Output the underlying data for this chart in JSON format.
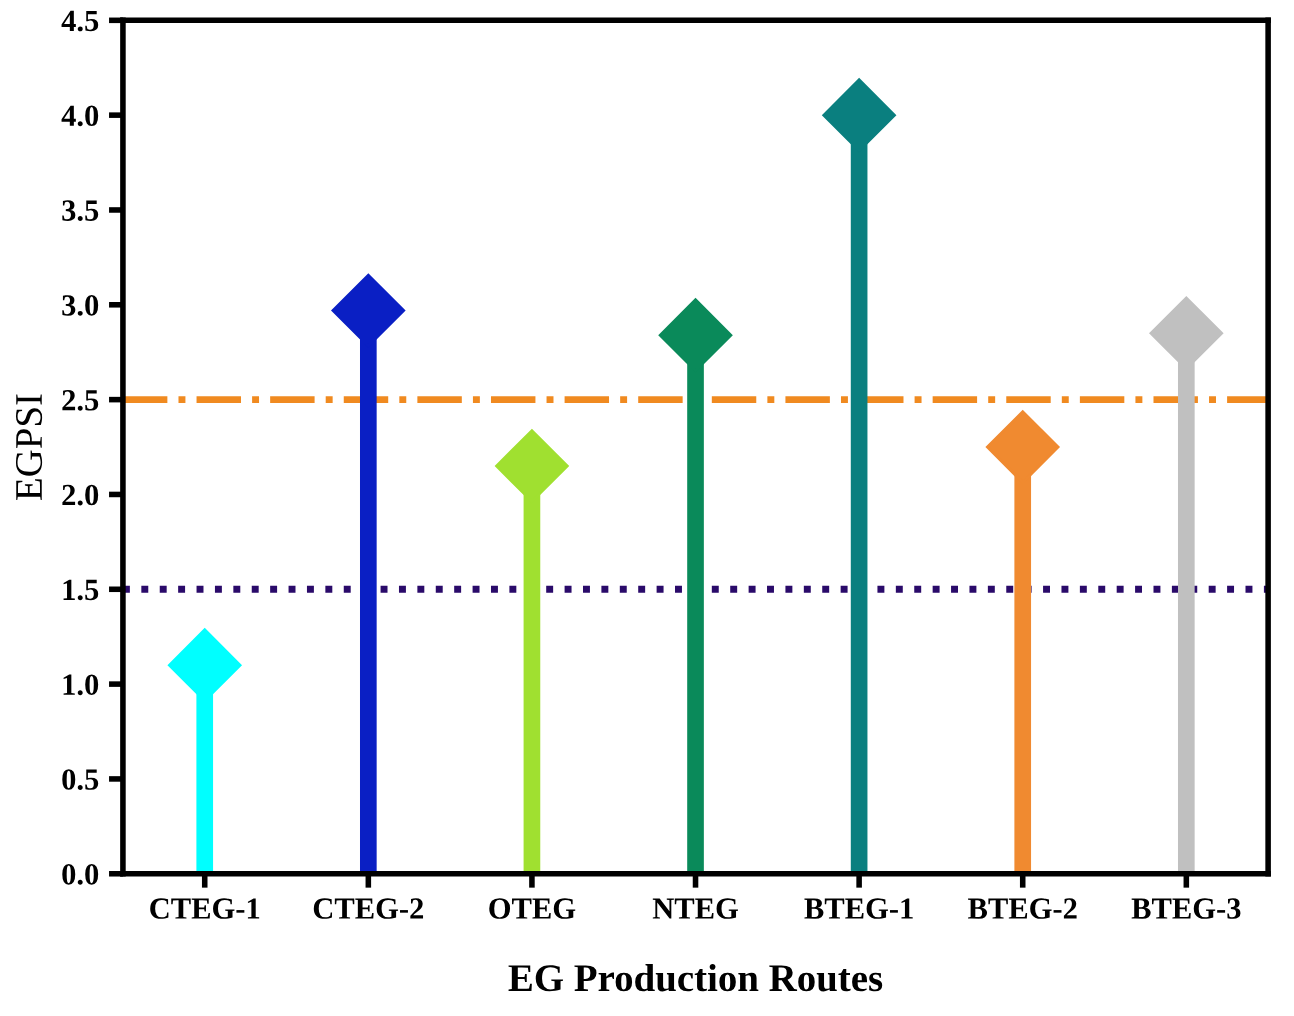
{
  "chart_data": {
    "type": "lollipop",
    "xlabel": "EG Production Routes",
    "ylabel": "EGPSI",
    "categories": [
      "CTEG-1",
      "CTEG-2",
      "OTEG",
      "NTEG",
      "BTEG-1",
      "BTEG-2",
      "BTEG-3"
    ],
    "values": [
      1.1,
      2.97,
      2.15,
      2.84,
      4.0,
      2.25,
      2.85
    ],
    "colors": [
      "#00ffff",
      "#0a1fc4",
      "#a0e030",
      "#0a8a5a",
      "#0a7f7f",
      "#f08a30",
      "#c0c0c0"
    ],
    "marker": "diamond",
    "ylim": [
      0,
      4.5
    ],
    "yticks": [
      {
        "value": 0,
        "label": "0.0"
      },
      {
        "value": 0.5,
        "label": "0.5"
      },
      {
        "value": 1,
        "label": "1.0"
      },
      {
        "value": 1.5,
        "label": "1.5"
      },
      {
        "value": 2,
        "label": "2.0"
      },
      {
        "value": 2.5,
        "label": "2.5"
      },
      {
        "value": 3,
        "label": "3.0"
      },
      {
        "value": 3.5,
        "label": "3.5"
      },
      {
        "value": 4,
        "label": "4.0"
      },
      {
        "value": 4.5,
        "label": "4.5"
      }
    ],
    "ref_lines": [
      {
        "axis": "y",
        "value": 2.5,
        "label": null,
        "color": "#f08a20",
        "line_style": "dashdot"
      },
      {
        "axis": "y",
        "value": 1.5,
        "label": null,
        "color": "#2a0a6a",
        "line_style": "dotted"
      }
    ],
    "grid": false,
    "legend": false
  }
}
